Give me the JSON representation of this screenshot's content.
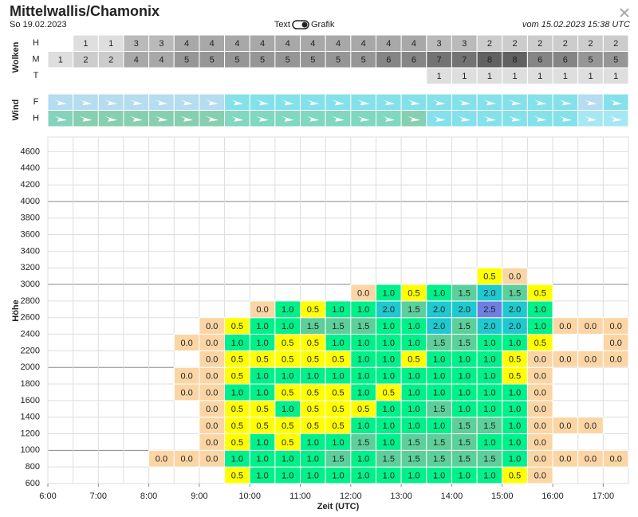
{
  "header": {
    "title": "Mittelwallis/Chamonix",
    "date": "So 19.02.2023",
    "toggle_left": "Text",
    "toggle_right": "Grafik",
    "issued": "vom 15.02.2023 15:38 UTC"
  },
  "panels": {
    "clouds": {
      "label": "Wolken",
      "rows": [
        {
          "label": "H",
          "values": [
            null,
            1,
            1,
            3,
            3,
            4,
            4,
            4,
            4,
            4,
            4,
            4,
            4,
            4,
            4,
            3,
            3,
            2,
            2,
            2,
            2,
            2,
            2
          ]
        },
        {
          "label": "M",
          "values": [
            1,
            2,
            2,
            4,
            4,
            5,
            5,
            5,
            5,
            5,
            5,
            5,
            5,
            6,
            6,
            7,
            7,
            8,
            8,
            6,
            6,
            5,
            5
          ]
        },
        {
          "label": "T",
          "values": [
            null,
            null,
            null,
            null,
            null,
            null,
            null,
            null,
            null,
            null,
            null,
            null,
            null,
            null,
            null,
            1,
            1,
            1,
            1,
            1,
            1,
            1,
            1
          ]
        }
      ]
    },
    "wind": {
      "label": "Wind",
      "rows": [
        {
          "label": "F",
          "colors": [
            "#b5dcef",
            "#b5dcef",
            "#b5dcef",
            "#b5dcef",
            "#b5dcef",
            "#b5dcef",
            "#b5dcef",
            "#84e1ea",
            "#84e1ea",
            "#84e1ea",
            "#84e1ea",
            "#84e1ea",
            "#84e1ea",
            "#84e1ea",
            "#84e1ea",
            "#84e1ea",
            "#84e1ea",
            "#84e1ea",
            "#84e1ea",
            "#84e1ea",
            "#84e1ea",
            "#b5dcef",
            "#84e1ea"
          ]
        },
        {
          "label": "H",
          "colors": [
            "#86d3bd",
            "#86cfb0",
            "#86cfb0",
            "#86cfb0",
            "#86cfb0",
            "#86cfb0",
            "#86cfb0",
            "#7fd8bf",
            "#7fd8bf",
            "#7fd8bf",
            "#7fd8bf",
            "#7fd8bf",
            "#7fd8bf",
            "#7fd8bf",
            "#86cfb0",
            "#84e1ea",
            "#84e1ea",
            "#84e1ea",
            "#84e1ea",
            "#84e1ea",
            "#84e1ea",
            "#a6e8f2",
            "#a6e8f2"
          ]
        }
      ]
    }
  },
  "chart_data": {
    "type": "heatmap",
    "x_label": "Zeit (UTC)",
    "y_label": "Höhe",
    "xlim": [
      6,
      17.5
    ],
    "ylim": [
      600,
      4700
    ],
    "x": [
      6,
      6.5,
      7,
      7.5,
      8,
      8.5,
      9,
      9.5,
      10,
      10.5,
      11,
      11.5,
      12,
      12.5,
      13,
      13.5,
      14,
      14.5,
      15,
      15.5,
      16,
      16.5,
      17
    ],
    "xticks": [
      {
        "value": 6,
        "label": "6:00"
      },
      {
        "value": 7,
        "label": "7:00"
      },
      {
        "value": 8,
        "label": "8:00"
      },
      {
        "value": 9,
        "label": "9:00"
      },
      {
        "value": 10,
        "label": "10:00"
      },
      {
        "value": 11,
        "label": "11:00"
      },
      {
        "value": 12,
        "label": "12:00"
      },
      {
        "value": 13,
        "label": "13:00"
      },
      {
        "value": 14,
        "label": "14:00"
      },
      {
        "value": 15,
        "label": "15:00"
      },
      {
        "value": 16,
        "label": "16:00"
      },
      {
        "value": 17,
        "label": "17:00"
      }
    ],
    "yticks": [
      600,
      800,
      1000,
      1200,
      1400,
      1600,
      1800,
      2000,
      2200,
      2400,
      2600,
      2800,
      3000,
      3200,
      3400,
      3600,
      3800,
      4000,
      4200,
      4400,
      4600
    ],
    "color_scale": [
      {
        "value": 0,
        "color": "#fcd5a5"
      },
      {
        "value": 0.5,
        "color": "#ffff00"
      },
      {
        "value": 1,
        "color": "#00f08a"
      },
      {
        "value": 1.5,
        "color": "#5ccf9a"
      },
      {
        "value": 2,
        "color": "#1ec9cf"
      },
      {
        "value": 2.5,
        "color": "#6f7fe0"
      }
    ],
    "rows": [
      {
        "y": 600,
        "values": [
          null,
          null,
          null,
          null,
          null,
          null,
          null,
          0.5,
          1,
          1,
          1,
          1,
          1,
          1,
          1,
          1,
          1,
          1,
          0.5,
          0,
          null,
          null,
          null
        ],
        "value_labels": [
          null,
          null,
          null,
          null,
          null,
          null,
          null,
          "0.5",
          "1.0",
          "1.0",
          "1.0",
          "1.0",
          "1.0",
          "1.0",
          "1.0",
          "1.0",
          "1.0",
          "1.0",
          "0.5",
          "0.0",
          null,
          null,
          null
        ]
      },
      {
        "y": 800,
        "values": [
          null,
          null,
          null,
          null,
          0,
          0,
          0,
          1,
          1,
          1,
          1,
          1.5,
          1,
          1.5,
          1.5,
          1.5,
          1.5,
          1.5,
          1,
          0,
          0,
          0,
          0
        ],
        "value_labels": [
          null,
          null,
          null,
          null,
          "0.0",
          "0.0",
          "0.0",
          "1.0",
          "1.0",
          "1.0",
          "1.0",
          "1.5",
          "1.0",
          "1.5",
          "1.5",
          "1.5",
          "1.5",
          "1.5",
          "1.0",
          "0.0",
          "0.0",
          "0.0",
          "0.0"
        ]
      },
      {
        "y": 1000,
        "values": [
          null,
          null,
          null,
          null,
          null,
          null,
          0,
          0.5,
          1,
          0.5,
          1,
          1,
          1.5,
          1,
          1.5,
          1.5,
          1.5,
          1,
          1,
          0,
          null,
          null,
          null
        ],
        "value_labels": [
          null,
          null,
          null,
          null,
          null,
          null,
          "0.0",
          "0.5",
          "1.0",
          "0.5",
          "1.0",
          "1.0",
          "1.5",
          "1.0",
          "1.5",
          "1.5",
          "1.5",
          "1.0",
          "1.0",
          "0.0",
          null,
          null,
          null
        ]
      },
      {
        "y": 1200,
        "values": [
          null,
          null,
          null,
          null,
          null,
          null,
          0,
          0.5,
          0.5,
          0.5,
          0.5,
          0.5,
          1,
          1,
          1,
          1,
          1.5,
          1.5,
          1,
          0,
          0,
          0,
          null
        ],
        "value_labels": [
          null,
          null,
          null,
          null,
          null,
          null,
          "0.0",
          "0.5",
          "0.5",
          "0.5",
          "0.5",
          "0.5",
          "1.0",
          "1.0",
          "1.0",
          "1.0",
          "1.5",
          "1.5",
          "1.0",
          "0.0",
          "0.0",
          "0.0",
          null
        ]
      },
      {
        "y": 1400,
        "values": [
          null,
          null,
          null,
          null,
          null,
          null,
          0,
          0.5,
          0.5,
          1,
          0.5,
          0.5,
          0.5,
          1,
          1,
          1.5,
          1,
          1,
          1,
          0,
          null,
          null,
          null
        ],
        "value_labels": [
          null,
          null,
          null,
          null,
          null,
          null,
          "0.0",
          "0.5",
          "0.5",
          "1.0",
          "0.5",
          "0.5",
          "0.5",
          "1.0",
          "1.0",
          "1.5",
          "1.0",
          "1.0",
          "1.0",
          "0.0",
          null,
          null,
          null
        ]
      },
      {
        "y": 1600,
        "values": [
          null,
          null,
          null,
          null,
          null,
          0,
          0,
          1,
          1,
          0.5,
          0.5,
          0.5,
          1,
          0.5,
          1,
          1,
          1,
          1,
          1,
          0,
          null,
          null,
          null
        ],
        "value_labels": [
          null,
          null,
          null,
          null,
          null,
          "0.0",
          "0.0",
          "1.0",
          "1.0",
          "0.5",
          "0.5",
          "0.5",
          "1.0",
          "0.5",
          "1.0",
          "1.0",
          "1.0",
          "1.0",
          "1.0",
          "0.0",
          null,
          null,
          null
        ]
      },
      {
        "y": 1800,
        "values": [
          null,
          null,
          null,
          null,
          null,
          0,
          0,
          0.5,
          1,
          1,
          1,
          1,
          1,
          1,
          1,
          1,
          1,
          1,
          0.5,
          0,
          null,
          null,
          null
        ],
        "value_labels": [
          null,
          null,
          null,
          null,
          null,
          "0.0",
          "0.0",
          "0.5",
          "1.0",
          "1.0",
          "1.0",
          "1.0",
          "1.0",
          "1.0",
          "1.0",
          "1.0",
          "1.0",
          "1.0",
          "0.5",
          "0.0",
          null,
          null,
          null
        ]
      },
      {
        "y": 2000,
        "values": [
          null,
          null,
          null,
          null,
          null,
          null,
          0,
          0.5,
          0.5,
          0.5,
          0.5,
          0.5,
          1,
          1,
          0.5,
          1,
          1,
          1,
          0.5,
          0,
          0,
          0,
          0
        ],
        "value_labels": [
          null,
          null,
          null,
          null,
          null,
          null,
          "0.0",
          "0.5",
          "0.5",
          "0.5",
          "0.5",
          "0.5",
          "1.0",
          "1.0",
          "0.5",
          "1.0",
          "1.0",
          "1.0",
          "0.5",
          "0.0",
          "0.0",
          "0.0",
          "0.0"
        ]
      },
      {
        "y": 2200,
        "values": [
          null,
          null,
          null,
          null,
          null,
          0,
          0,
          1,
          1,
          0.5,
          0.5,
          1,
          1,
          1,
          1,
          1.5,
          1.5,
          1,
          1,
          0.5,
          null,
          null,
          0
        ],
        "value_labels": [
          null,
          null,
          null,
          null,
          null,
          "0.0",
          "0.0",
          "1.0",
          "1.0",
          "0.5",
          "0.5",
          "1.0",
          "1.0",
          "1.0",
          "1.0",
          "1.5",
          "1.5",
          "1.0",
          "1.0",
          "0.5",
          null,
          null,
          "0.0"
        ]
      },
      {
        "y": 2400,
        "values": [
          null,
          null,
          null,
          null,
          null,
          null,
          0,
          0.5,
          1,
          1,
          1.5,
          1.5,
          1.5,
          1,
          1,
          2,
          1.5,
          2,
          2,
          1,
          0,
          0,
          0
        ],
        "value_labels": [
          null,
          null,
          null,
          null,
          null,
          null,
          "0.0",
          "0.5",
          "1.0",
          "1.0",
          "1.5",
          "1.5",
          "1.5",
          "1.0",
          "1.0",
          "2.0",
          "1.5",
          "2.0",
          "2.0",
          "1.0",
          "0.0",
          "0.0",
          "0.0"
        ]
      },
      {
        "y": 2600,
        "values": [
          null,
          null,
          null,
          null,
          null,
          null,
          null,
          null,
          0,
          1,
          0.5,
          1,
          1,
          2,
          1.5,
          2,
          2,
          2.5,
          2,
          1,
          null,
          null,
          null
        ],
        "value_labels": [
          null,
          null,
          null,
          null,
          null,
          null,
          null,
          null,
          "0.0",
          "1.0",
          "0.5",
          "1.0",
          "1.0",
          "2.0",
          "1.5",
          "2.0",
          "2.0",
          "2.5",
          "2.0",
          "1.0",
          null,
          null,
          null
        ]
      },
      {
        "y": 2800,
        "values": [
          null,
          null,
          null,
          null,
          null,
          null,
          null,
          null,
          null,
          null,
          null,
          null,
          0,
          1,
          0.5,
          1,
          1.5,
          2,
          1.5,
          0.5,
          null,
          null,
          null
        ],
        "value_labels": [
          null,
          null,
          null,
          null,
          null,
          null,
          null,
          null,
          null,
          null,
          null,
          null,
          "0.0",
          "1.0",
          "0.5",
          "1.0",
          "1.5",
          "2.0",
          "1.5",
          "0.5",
          null,
          null,
          null
        ]
      },
      {
        "y": 3000,
        "values": [
          null,
          null,
          null,
          null,
          null,
          null,
          null,
          null,
          null,
          null,
          null,
          null,
          null,
          null,
          null,
          null,
          null,
          0.5,
          0,
          null,
          null,
          null,
          null
        ],
        "value_labels": [
          null,
          null,
          null,
          null,
          null,
          null,
          null,
          null,
          null,
          null,
          null,
          null,
          null,
          null,
          null,
          null,
          null,
          "0.5",
          "0.0",
          null,
          null,
          null,
          null
        ]
      }
    ]
  }
}
